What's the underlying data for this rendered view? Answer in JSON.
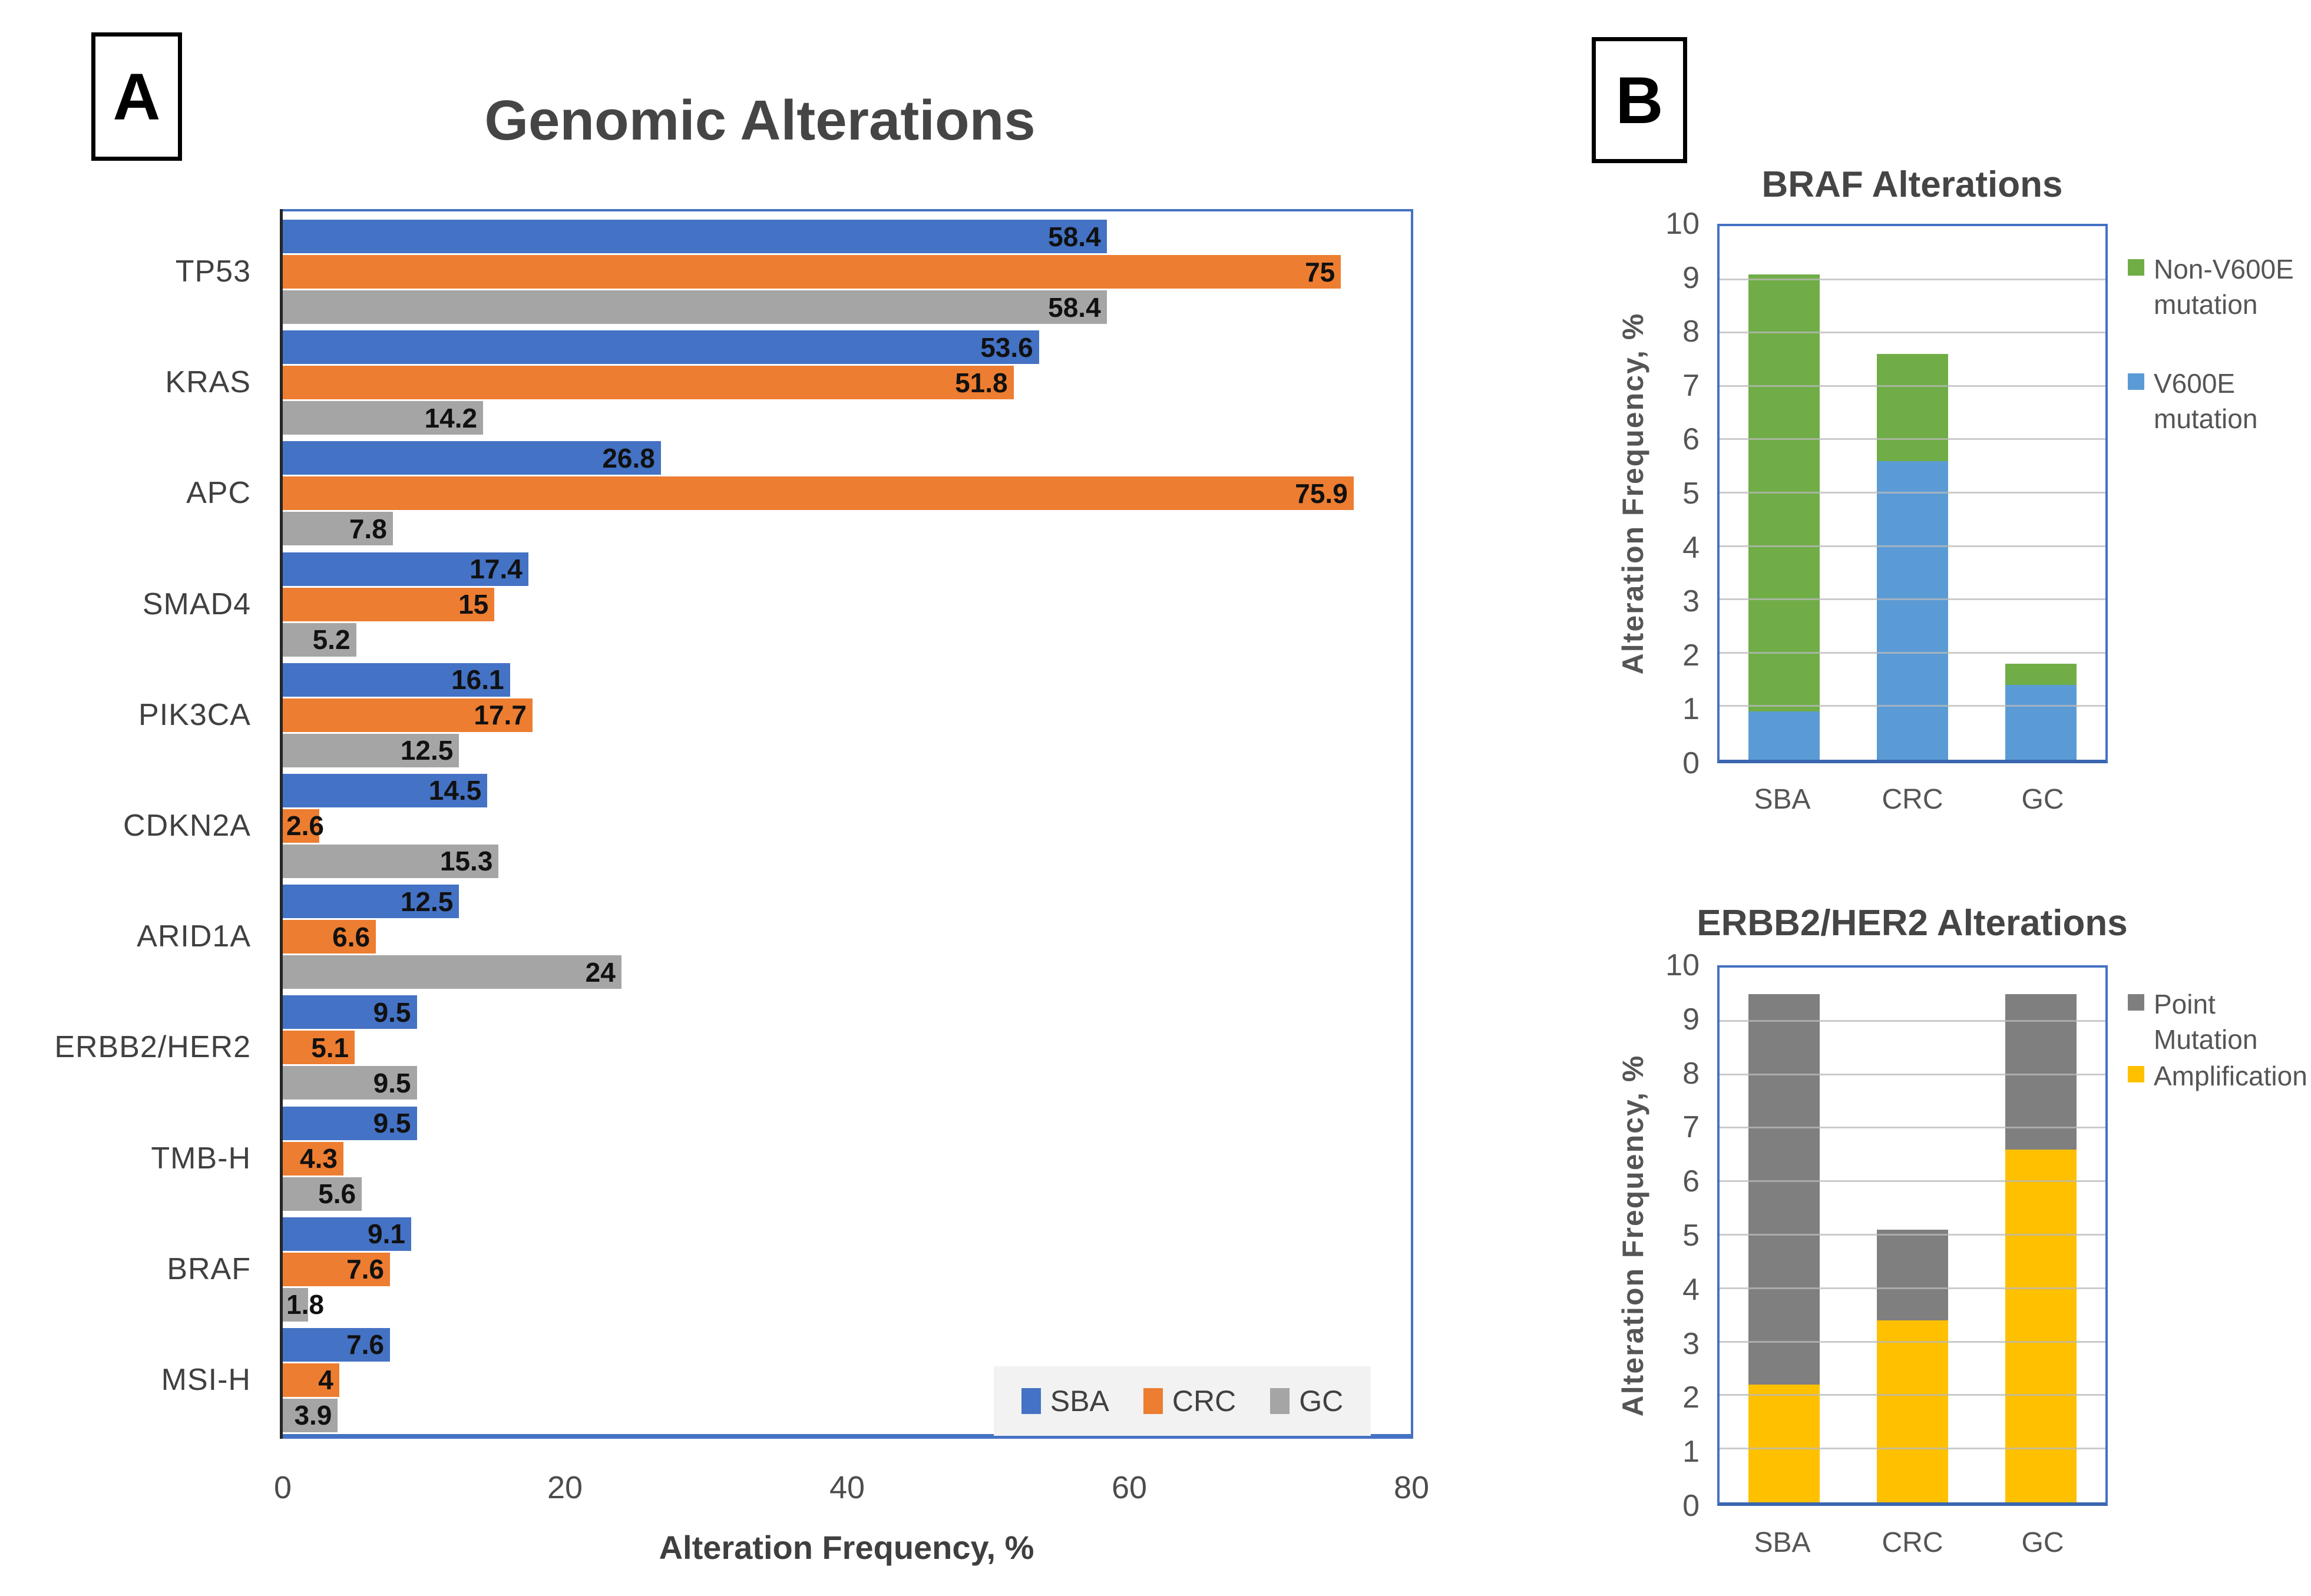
{
  "panel_labels": {
    "a": "A",
    "b": "B"
  },
  "chart_data": [
    {
      "id": "genomic-alterations",
      "type": "bar",
      "orientation": "horizontal",
      "title": "Genomic Alterations",
      "xlabel": "Alteration Frequency, %",
      "xlim": [
        0,
        80
      ],
      "x_ticks": [
        0,
        20,
        40,
        60,
        80
      ],
      "grid": false,
      "legend_position": "bottom-right",
      "categories": [
        "TP53",
        "KRAS",
        "APC",
        "SMAD4",
        "PIK3CA",
        "CDKN2A",
        "ARID1A",
        "ERBB2/HER2",
        "TMB-H",
        "BRAF",
        "MSI-H"
      ],
      "series": [
        {
          "name": "SBA",
          "color": "#4472C4",
          "values": [
            58.4,
            53.6,
            26.8,
            17.4,
            16.1,
            14.5,
            12.5,
            9.5,
            9.5,
            9.1,
            7.6
          ]
        },
        {
          "name": "CRC",
          "color": "#ED7D31",
          "values": [
            75,
            51.8,
            75.9,
            15,
            17.7,
            2.6,
            6.6,
            5.1,
            4.3,
            7.6,
            4
          ]
        },
        {
          "name": "GC",
          "color": "#A5A5A5",
          "values": [
            58.4,
            14.2,
            7.8,
            5.2,
            12.5,
            15.3,
            24,
            9.5,
            5.6,
            1.8,
            3.9
          ]
        }
      ]
    },
    {
      "id": "braf-alterations",
      "type": "stacked-bar",
      "title": "BRAF Alterations",
      "ylabel": "Alteration Frequency, %",
      "ylim": [
        0,
        10
      ],
      "y_ticks": [
        0,
        1,
        2,
        3,
        4,
        5,
        6,
        7,
        8,
        9,
        10
      ],
      "grid": true,
      "legend_position": "right",
      "categories": [
        "SBA",
        "CRC",
        "GC"
      ],
      "series": [
        {
          "name": "V600E mutation",
          "color": "#5B9BD5",
          "values": [
            0.9,
            5.6,
            1.4
          ]
        },
        {
          "name": "Non-V600E mutation",
          "color": "#70AD47",
          "values": [
            8.2,
            2.0,
            0.4
          ]
        }
      ],
      "totals": [
        9.1,
        7.6,
        1.8
      ]
    },
    {
      "id": "erbb2-her2-alterations",
      "type": "stacked-bar",
      "title": "ERBB2/HER2 Alterations",
      "ylabel": "Alteration Frequency, %",
      "ylim": [
        0,
        10
      ],
      "y_ticks": [
        0,
        1,
        2,
        3,
        4,
        5,
        6,
        7,
        8,
        9,
        10
      ],
      "grid": true,
      "legend_position": "right",
      "categories": [
        "SBA",
        "CRC",
        "GC"
      ],
      "series": [
        {
          "name": "Amplification",
          "color": "#FFC000",
          "values": [
            2.2,
            3.4,
            6.6
          ]
        },
        {
          "name": "Point Mutation",
          "color": "#7F7F7F",
          "values": [
            7.3,
            1.7,
            2.9
          ]
        }
      ],
      "totals": [
        9.5,
        5.1,
        9.5
      ]
    }
  ]
}
